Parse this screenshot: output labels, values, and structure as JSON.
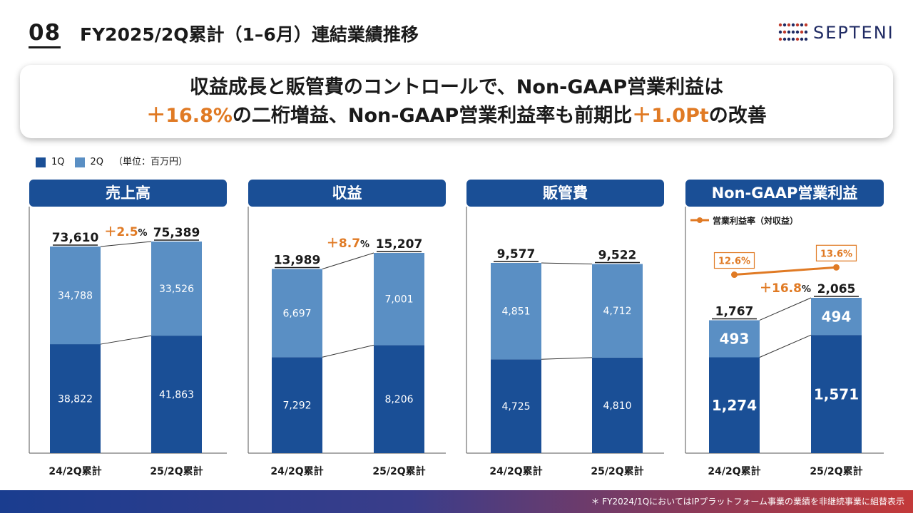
{
  "header": {
    "number": "08",
    "title": "FY2025/2Q累計（1–6月）連結業績推移",
    "logo_text": "SEPTENI"
  },
  "headline": {
    "line1": "収益成長と販管費のコントロールで、Non-GAAP営業利益は",
    "line2_accent1": "＋16.8%",
    "line2_mid": "の二桁増益、Non-GAAP営業利益率も前期比",
    "line2_accent2": "＋1.0Pt",
    "line2_end": "の改善"
  },
  "legend": {
    "q1": "1Q",
    "q2": "2Q",
    "unit": "（単位：百万円）"
  },
  "colors": {
    "q1": "#1a4f96",
    "q2": "#5a8fc4",
    "accent": "#e07a24",
    "header": "#1a4f96"
  },
  "footer": {
    "note": "＊ FY2024/1QにおいてはIPプラットフォーム事業の業績を非継続事業に組替表示"
  },
  "chart_data": [
    {
      "type": "bar",
      "stacked": true,
      "title": "売上高",
      "categories": [
        "24/2Q累計",
        "25/2Q累計"
      ],
      "series": [
        {
          "name": "1Q",
          "values": [
            38822,
            41863
          ]
        },
        {
          "name": "2Q",
          "values": [
            34788,
            33526
          ]
        }
      ],
      "totals": [
        "73,610",
        "75,389"
      ],
      "q1_labels": [
        "38,822",
        "41,863"
      ],
      "q2_labels": [
        "34,788",
        "33,526"
      ],
      "growth": "＋2.5",
      "growth_unit": "%"
    },
    {
      "type": "bar",
      "stacked": true,
      "title": "収益",
      "categories": [
        "24/2Q累計",
        "25/2Q累計"
      ],
      "series": [
        {
          "name": "1Q",
          "values": [
            7292,
            8206
          ]
        },
        {
          "name": "2Q",
          "values": [
            6697,
            7001
          ]
        }
      ],
      "totals": [
        "13,989",
        "15,207"
      ],
      "q1_labels": [
        "7,292",
        "8,206"
      ],
      "q2_labels": [
        "6,697",
        "7,001"
      ],
      "growth": "＋8.7",
      "growth_unit": "%"
    },
    {
      "type": "bar",
      "stacked": true,
      "title": "販管費",
      "categories": [
        "24/2Q累計",
        "25/2Q累計"
      ],
      "series": [
        {
          "name": "1Q",
          "values": [
            4725,
            4810
          ]
        },
        {
          "name": "2Q",
          "values": [
            4851,
            4712
          ]
        }
      ],
      "totals": [
        "9,577",
        "9,522"
      ],
      "q1_labels": [
        "4,725",
        "4,810"
      ],
      "q2_labels": [
        "4,851",
        "4,712"
      ]
    },
    {
      "type": "bar",
      "stacked": true,
      "title": "Non-GAAP営業利益",
      "categories": [
        "24/2Q累計",
        "25/2Q累計"
      ],
      "series": [
        {
          "name": "1Q",
          "values": [
            1274,
            1571
          ]
        },
        {
          "name": "2Q",
          "values": [
            493,
            494
          ]
        }
      ],
      "totals": [
        "1,767",
        "2,065"
      ],
      "q1_labels": [
        "1,274",
        "1,571"
      ],
      "q2_labels": [
        "493",
        "494"
      ],
      "growth": "＋16.8",
      "growth_unit": "%",
      "margin_series": {
        "name": "営業利益率（対収益）",
        "values": [
          12.6,
          13.6
        ],
        "labels": [
          "12.6%",
          "13.6%"
        ]
      }
    }
  ]
}
